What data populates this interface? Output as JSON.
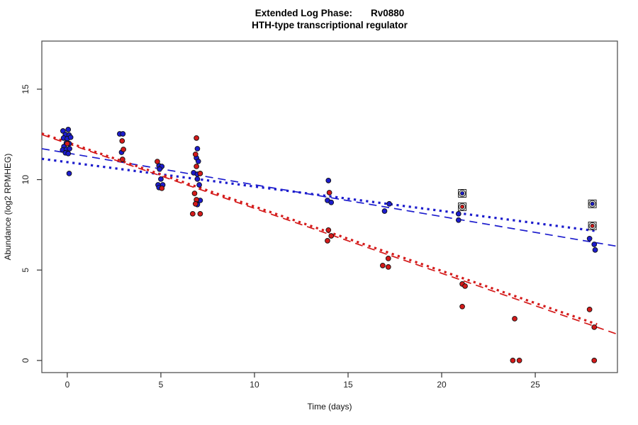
{
  "chart_data": {
    "type": "scatter",
    "title_prefix": "Extended Log Phase:",
    "title_gene": "Rv0880",
    "subtitle": "HTH-type transcriptional regulator",
    "xlabel": "Time (days)",
    "ylabel": "Abundance (log2 RPMHEG)",
    "x_ticks": [
      0,
      5,
      10,
      15,
      20,
      25
    ],
    "y_ticks": [
      0,
      5,
      10,
      15
    ],
    "xlim": [
      -1.36,
      29.39
    ],
    "ylim": [
      -0.67,
      17.66
    ],
    "grid": false,
    "legend": "none",
    "colors": {
      "blue": "#1c1ccd",
      "red": "#d41a1a",
      "axis": "#555555",
      "tick_text": "#222222"
    },
    "series": [
      {
        "name": "blue-points",
        "color": "blue",
        "marker": "dot",
        "points": [
          [
            -0.23,
            12.69
          ],
          [
            0.05,
            12.77
          ],
          [
            -0.1,
            12.49
          ],
          [
            0.1,
            12.46
          ],
          [
            -0.2,
            12.3
          ],
          [
            0.0,
            12.26
          ],
          [
            0.18,
            12.34
          ],
          [
            -0.05,
            12.03
          ],
          [
            0.1,
            11.99
          ],
          [
            -0.18,
            11.83
          ],
          [
            -0.25,
            11.64
          ],
          [
            -0.05,
            11.67
          ],
          [
            0.12,
            11.71
          ],
          [
            -0.1,
            11.48
          ],
          [
            0.05,
            11.44
          ],
          [
            0.1,
            10.34
          ],
          [
            2.8,
            12.53
          ],
          [
            2.97,
            12.53
          ],
          [
            2.9,
            11.51
          ],
          [
            4.9,
            10.77
          ],
          [
            5.05,
            10.73
          ],
          [
            4.93,
            10.58
          ],
          [
            5.0,
            10.03
          ],
          [
            4.85,
            9.71
          ],
          [
            5.1,
            9.71
          ],
          [
            4.9,
            9.56
          ],
          [
            6.95,
            11.71
          ],
          [
            6.9,
            11.2
          ],
          [
            7.0,
            11.01
          ],
          [
            6.75,
            10.38
          ],
          [
            6.95,
            10.3
          ],
          [
            6.95,
            10.03
          ],
          [
            7.05,
            9.71
          ],
          [
            7.1,
            8.85
          ],
          [
            6.95,
            8.62
          ],
          [
            13.95,
            9.95
          ],
          [
            13.9,
            8.85
          ],
          [
            14.1,
            8.74
          ],
          [
            17.2,
            8.66
          ],
          [
            16.95,
            8.26
          ],
          [
            20.9,
            8.11
          ],
          [
            20.9,
            7.76
          ],
          [
            27.9,
            6.74
          ],
          [
            28.15,
            6.42
          ],
          [
            28.2,
            6.11
          ]
        ]
      },
      {
        "name": "red-points",
        "color": "red",
        "marker": "dot",
        "points": [
          [
            0.0,
            11.99
          ],
          [
            2.93,
            12.14
          ],
          [
            3.0,
            11.67
          ],
          [
            2.95,
            11.12
          ],
          [
            4.81,
            11.0
          ],
          [
            5.05,
            9.52
          ],
          [
            6.9,
            12.3
          ],
          [
            6.85,
            11.4
          ],
          [
            6.9,
            10.73
          ],
          [
            7.1,
            10.34
          ],
          [
            6.8,
            9.24
          ],
          [
            6.9,
            8.89
          ],
          [
            6.85,
            8.66
          ],
          [
            6.7,
            8.11
          ],
          [
            7.1,
            8.11
          ],
          [
            14.0,
            9.28
          ],
          [
            13.95,
            7.21
          ],
          [
            14.1,
            6.89
          ],
          [
            13.9,
            6.62
          ],
          [
            17.15,
            5.64
          ],
          [
            16.85,
            5.25
          ],
          [
            17.15,
            5.17
          ],
          [
            21.1,
            4.23
          ],
          [
            21.25,
            4.11
          ],
          [
            21.1,
            2.98
          ],
          [
            23.9,
            2.31
          ],
          [
            23.8,
            0.0
          ],
          [
            24.15,
            0.0
          ],
          [
            27.9,
            2.82
          ],
          [
            28.15,
            1.84
          ],
          [
            28.15,
            0.0
          ]
        ]
      },
      {
        "name": "blue-flagged-points",
        "color": "blue",
        "marker": "circle-square-dot",
        "points": [
          [
            21.1,
            9.24
          ],
          [
            28.05,
            8.66
          ]
        ]
      },
      {
        "name": "red-flagged-points",
        "color": "red",
        "marker": "circle-square-dot",
        "points": [
          [
            21.1,
            8.5
          ],
          [
            28.05,
            7.44
          ]
        ]
      }
    ],
    "fit_lines": [
      {
        "name": "blue-dashed-fit",
        "color": "blue",
        "style": "dashed",
        "x1": -1.36,
        "y1": 11.71,
        "x2": 29.39,
        "y2": 6.31
      },
      {
        "name": "blue-dotted-fit",
        "color": "blue",
        "style": "dotted",
        "x1": -1.36,
        "y1": 11.15,
        "x2": 28.3,
        "y2": 7.15
      },
      {
        "name": "red-dashed-fit",
        "color": "red",
        "style": "dashed",
        "x1": -1.36,
        "y1": 12.49,
        "x2": 29.39,
        "y2": 1.45
      },
      {
        "name": "red-dotted-fit",
        "color": "red",
        "style": "dotted",
        "x1": -1.36,
        "y1": 12.55,
        "x2": 28.3,
        "y2": 2.0
      }
    ]
  }
}
